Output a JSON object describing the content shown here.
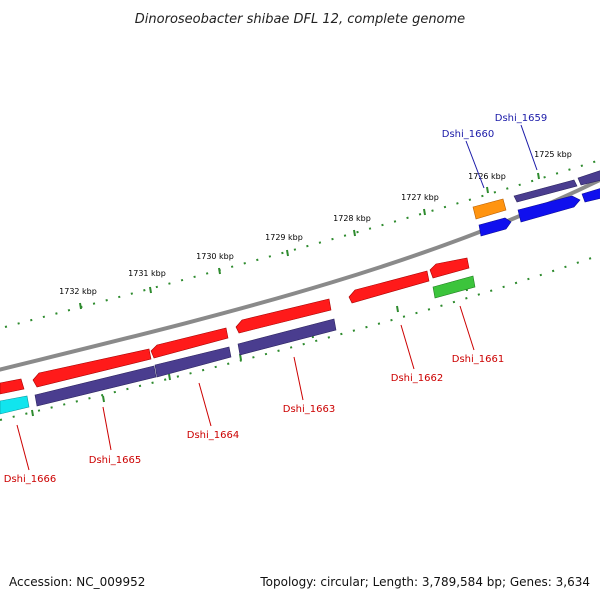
{
  "title": "Dinoroseobacter shibae DFL 12, complete genome",
  "footer": {
    "accession": "Accession: NC_009952",
    "summary": "Topology: circular; Length: 3,789,584 bp; Genes: 3,634"
  },
  "colors": {
    "backbone": "#8a8a8a",
    "tick": "#2e8b2e",
    "label_red": "#cc0000",
    "label_blue": "#1a1aa8",
    "red": "#ff1a1a",
    "navy": "#4a3d8f",
    "blue": "#1010ee",
    "orange": "#ff9410",
    "green": "#3cc43c",
    "cyan": "#11e5ee"
  },
  "kbp_labels": [
    "1725 kbp",
    "1726 kbp",
    "1727 kbp",
    "1728 kbp",
    "1729 kbp",
    "1730 kbp",
    "1731 kbp",
    "1732 kbp"
  ],
  "gene_labels": {
    "dshi_1659": "Dshi_1659",
    "dshi_1660": "Dshi_1660",
    "dshi_1661": "Dshi_1661",
    "dshi_1662": "Dshi_1662",
    "dshi_1663": "Dshi_1663",
    "dshi_1664": "Dshi_1664",
    "dshi_1665": "Dshi_1665",
    "dshi_1666": "Dshi_1666"
  }
}
